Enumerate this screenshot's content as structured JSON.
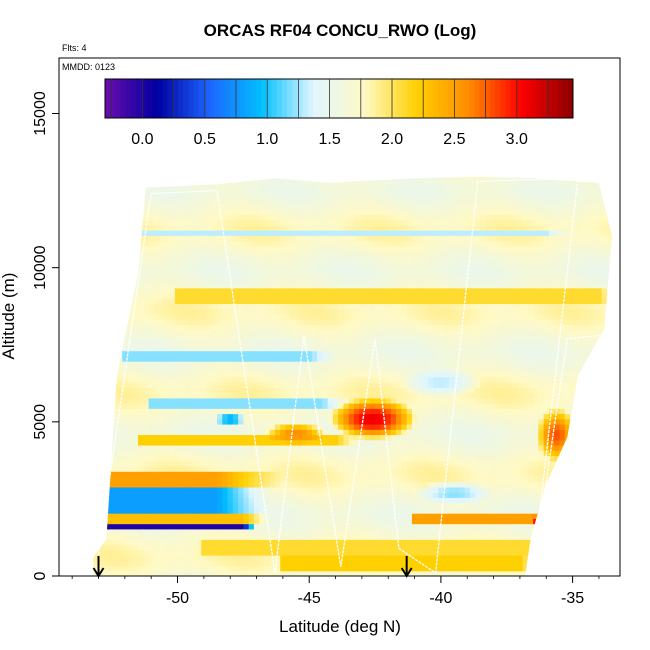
{
  "chart_data": {
    "type": "heatmap",
    "title": "ORCAS RF04 CONCU_RWO (Log)",
    "xlabel": "Latitude (deg N)",
    "ylabel": "Altitude (m)",
    "xlim": [
      -54.5,
      -33.2
    ],
    "ylim": [
      0,
      16800
    ],
    "x_ticks": [
      -50,
      -45,
      -40,
      -35
    ],
    "y_ticks": [
      0,
      5000,
      10000,
      15000
    ],
    "x_tick_labels": [
      "-50",
      "-45",
      "-40",
      "-35"
    ],
    "y_tick_labels": [
      "0",
      "5000",
      "10000",
      "15000"
    ],
    "flights_note": "Flts: 4",
    "date_note": "MMDD: 0123",
    "colorbar": {
      "range": [
        -0.3,
        3.45
      ],
      "ticks": [
        0.0,
        0.5,
        1.0,
        1.5,
        2.0,
        2.5,
        3.0
      ],
      "tick_labels": [
        "0.0",
        "0.5",
        "1.0",
        "1.5",
        "2.0",
        "2.5",
        "3.0"
      ],
      "colors": [
        "#6a0dad",
        "#0000a0",
        "#1e64ff",
        "#00bfff",
        "#e0f6ff",
        "#fff9c4",
        "#ffd000",
        "#ff8c00",
        "#ff0000",
        "#8b0000"
      ]
    },
    "grid": false,
    "legend": "colorbar-top",
    "arrows_at_latitude": [
      -53.0,
      -41.3
    ],
    "field": {
      "background_value": 1.7,
      "domain_polygon": [
        [
          -53.2,
          600
        ],
        [
          -52.7,
          1200
        ],
        [
          -52.3,
          6500
        ],
        [
          -51.5,
          9800
        ],
        [
          -51.2,
          12600
        ],
        [
          -48.5,
          12700
        ],
        [
          -46.3,
          12900
        ],
        [
          -44.2,
          12750
        ],
        [
          -41.0,
          12900
        ],
        [
          -38.5,
          12950
        ],
        [
          -36.5,
          12900
        ],
        [
          -34.0,
          12750
        ],
        [
          -33.5,
          11000
        ],
        [
          -33.8,
          8000
        ],
        [
          -34.8,
          6500
        ],
        [
          -35.2,
          4500
        ],
        [
          -36.0,
          3000
        ],
        [
          -36.6,
          1200
        ],
        [
          -36.8,
          0
        ],
        [
          -49.0,
          0
        ],
        [
          -53.2,
          0
        ]
      ],
      "features": [
        {
          "type": "band",
          "lat_min": -53.0,
          "lat_max": -47.5,
          "alt_min": 1450,
          "alt_max": 1750,
          "value": 0.0,
          "fade_to_lat": -47.0
        },
        {
          "type": "band",
          "lat_min": -53.0,
          "lat_max": -48.5,
          "alt_min": 2000,
          "alt_max": 2900,
          "value": 0.8,
          "fade_to_lat": -46.5
        },
        {
          "type": "band",
          "lat_min": -53.0,
          "lat_max": -48.5,
          "alt_min": 2900,
          "alt_max": 3450,
          "value": 2.5,
          "fade_to_lat": -46.0
        },
        {
          "type": "band",
          "lat_min": -53.0,
          "lat_max": -47.5,
          "alt_min": 1750,
          "alt_max": 2000,
          "value": 2.3,
          "fade_to_lat": -46.5
        },
        {
          "type": "band",
          "lat_min": -51.5,
          "lat_max": -44.0,
          "alt_min": 4200,
          "alt_max": 4600,
          "value": 2.2,
          "fade_to_lat": -43.0
        },
        {
          "type": "band",
          "lat_min": -51.0,
          "lat_max": -44.5,
          "alt_min": 5400,
          "alt_max": 5800,
          "value": 1.2,
          "fade_to_lat": -43.5
        },
        {
          "type": "band",
          "lat_min": -52.0,
          "lat_max": -45.0,
          "alt_min": 7000,
          "alt_max": 7300,
          "value": 1.2,
          "fade_to_lat": -44.0
        },
        {
          "type": "band",
          "lat_min": -50.0,
          "lat_max": -34.0,
          "alt_min": 8900,
          "alt_max": 9300,
          "value": 2.1,
          "fade_to_lat": -33.5
        },
        {
          "type": "band",
          "lat_min": -51.5,
          "lat_max": -36.0,
          "alt_min": 11000,
          "alt_max": 11300,
          "value": 1.3,
          "fade_to_lat": -35.0
        },
        {
          "type": "band",
          "lat_min": -49.0,
          "lat_max": -36.0,
          "alt_min": 700,
          "alt_max": 1200,
          "value": 2.1,
          "fade_to_lat": -35.0
        },
        {
          "type": "band",
          "lat_min": -46.0,
          "lat_max": -37.0,
          "alt_min": 100,
          "alt_max": 650,
          "value": 2.2,
          "fade_to_lat": -36.5
        },
        {
          "type": "band",
          "lat_min": -41.0,
          "lat_max": -36.5,
          "alt_min": 1700,
          "alt_max": 2000,
          "value": 2.5,
          "fade_to_lat": -36.0
        },
        {
          "type": "blob",
          "lat": -42.6,
          "alt": 5100,
          "r_lat": 1.7,
          "r_alt": 700,
          "value": 3.1
        },
        {
          "type": "blob",
          "lat": -45.5,
          "alt": 4650,
          "r_lat": 1.2,
          "r_alt": 350,
          "value": 2.6
        },
        {
          "type": "blob",
          "lat": -48.0,
          "alt": 5100,
          "r_lat": 0.7,
          "r_alt": 150,
          "value": 0.6
        },
        {
          "type": "blob",
          "lat": -36.2,
          "alt": 1800,
          "r_lat": 0.35,
          "r_alt": 250,
          "value": 3.3
        },
        {
          "type": "blob",
          "lat": -35.6,
          "alt": 4600,
          "r_lat": 0.8,
          "r_alt": 900,
          "value": 2.8
        },
        {
          "type": "blob",
          "lat": -39.5,
          "alt": 2700,
          "r_lat": 1.5,
          "r_alt": 400,
          "value": 1.2
        },
        {
          "type": "blob",
          "lat": -40.0,
          "alt": 6300,
          "r_lat": 1.5,
          "r_alt": 500,
          "value": 1.3
        }
      ]
    },
    "flight_track": [
      [
        -53.0,
        700
      ],
      [
        -51.0,
        12400
      ],
      [
        -48.5,
        12500
      ],
      [
        -46.3,
        100
      ],
      [
        -45.2,
        7800
      ],
      [
        -43.8,
        300
      ],
      [
        -42.5,
        7700
      ],
      [
        -41.6,
        900
      ],
      [
        -40.2,
        100
      ],
      [
        -38.6,
        12800
      ],
      [
        -34.8,
        12900
      ],
      [
        -36.5,
        200
      ],
      [
        -35.2,
        7700
      ],
      [
        -33.9,
        7800
      ]
    ]
  }
}
